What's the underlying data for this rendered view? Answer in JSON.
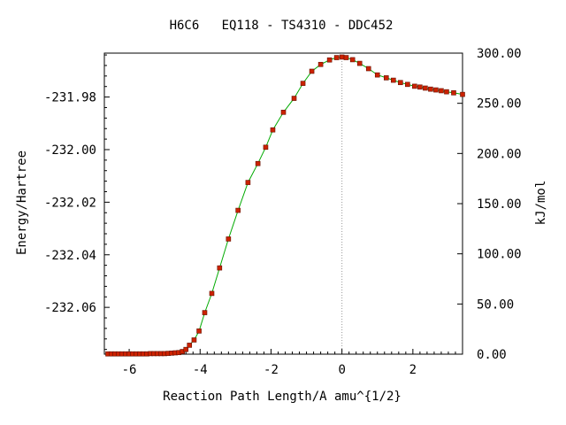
{
  "chart_data": {
    "type": "line",
    "title": "H6C6   EQ118 - TS4310 - DDC452",
    "xlabel": "Reaction Path Length/A amu^{1/2}",
    "ylabel_left": "Energy/Hartree",
    "ylabel_right": "kJ/mol",
    "xlim": [
      -6.7,
      3.4
    ],
    "ylim_left": [
      -232.0778,
      -231.9633
    ],
    "ylim_right": [
      0,
      300
    ],
    "x_ticks": [
      -6,
      -4,
      -2,
      0,
      2
    ],
    "y_ticks_left": [
      -231.98,
      -232.0,
      -232.02,
      -232.04,
      -232.06
    ],
    "y_ticks_left_labels": [
      "-231.98",
      "-232.00",
      "-232.02",
      "-232.04",
      "-232.06"
    ],
    "y_ticks_right": [
      300,
      250,
      200,
      150,
      100,
      50,
      0
    ],
    "y_ticks_right_labels": [
      "300.00",
      "250.00",
      "200.00",
      "150.00",
      "100.00",
      "50.00",
      "0.00"
    ],
    "ts_marker_x": 0,
    "colors": {
      "line": "#00aa00",
      "marker": "#cc2200",
      "marker_edge": "#661100",
      "ts_line": "#999999",
      "axis": "#000000"
    },
    "series": [
      {
        "x": [
          -6.6,
          -6.5,
          -6.4,
          -6.3,
          -6.2,
          -6.1,
          -6.0,
          -5.9,
          -5.8,
          -5.7,
          -5.6,
          -5.5,
          -5.4,
          -5.3,
          -5.2,
          -5.1,
          -5.0,
          -4.9,
          -4.8,
          -4.7,
          -4.6,
          -4.5,
          -4.4,
          -4.3,
          -4.17,
          -4.03,
          -3.87,
          -3.67,
          -3.45,
          -3.2,
          -2.93,
          -2.65,
          -2.37,
          -2.15,
          -1.95,
          -1.65,
          -1.35,
          -1.1,
          -0.85,
          -0.6,
          -0.35,
          -0.15,
          0.0,
          0.12,
          0.3,
          0.5,
          0.75,
          1.0,
          1.25,
          1.45,
          1.65,
          1.85,
          2.05,
          2.2,
          2.35,
          2.5,
          2.65,
          2.8,
          2.95,
          3.15,
          3.4
        ],
        "y": [
          -232.0777,
          -232.0777,
          -232.0777,
          -232.0777,
          -232.0777,
          -232.0777,
          -232.0777,
          -232.0777,
          -232.0777,
          -232.0777,
          -232.0777,
          -232.0777,
          -232.0776,
          -232.0776,
          -232.0776,
          -232.0776,
          -232.0776,
          -232.0775,
          -232.0774,
          -232.0773,
          -232.0772,
          -232.0768,
          -232.076,
          -232.0744,
          -232.0724,
          -232.069,
          -232.062,
          -232.0547,
          -232.045,
          -232.034,
          -232.0231,
          -232.0125,
          -232.0053,
          -231.9991,
          -231.9925,
          -231.9858,
          -231.9805,
          -231.9748,
          -231.9702,
          -231.9676,
          -231.9659,
          -231.965,
          -231.9648,
          -231.965,
          -231.9658,
          -231.9672,
          -231.9692,
          -231.9716,
          -231.9727,
          -231.9736,
          -231.9745,
          -231.9752,
          -231.9759,
          -231.9762,
          -231.9766,
          -231.977,
          -231.9773,
          -231.9776,
          -231.978,
          -231.9784,
          -231.979
        ]
      }
    ]
  }
}
